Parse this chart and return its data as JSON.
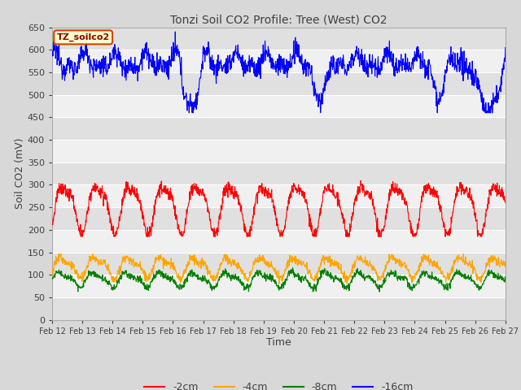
{
  "title": "Tonzi Soil CO2 Profile: Tree (West) CO2",
  "xlabel": "Time",
  "ylabel": "Soil CO2 (mV)",
  "legend_label": "TZ_soilco2",
  "ylim": [
    0,
    650
  ],
  "yticks": [
    0,
    50,
    100,
    150,
    200,
    250,
    300,
    350,
    400,
    450,
    500,
    550,
    600,
    650
  ],
  "xtick_labels": [
    "Feb 12",
    "Feb 13",
    "Feb 14",
    "Feb 15",
    "Feb 16",
    "Feb 17",
    "Feb 18",
    "Feb 19",
    "Feb 20",
    "Feb 21",
    "Feb 22",
    "Feb 23",
    "Feb 24",
    "Feb 25",
    "Feb 26",
    "Feb 27"
  ],
  "line_colors": [
    "red",
    "orange",
    "green",
    "blue"
  ],
  "line_labels": [
    "-2cm",
    "-4cm",
    "-8cm",
    "-16cm"
  ],
  "fig_bg_color": "#d8d8d8",
  "plot_bg_light": "#f0f0f0",
  "plot_bg_dark": "#e0e0e0",
  "title_color": "#505050",
  "seed": 12345
}
